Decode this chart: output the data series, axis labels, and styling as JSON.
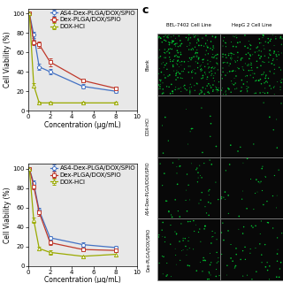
{
  "top_chart": {
    "xlabel": "Concentration (μg/mL)",
    "ylabel": "Cell Viability (%)",
    "xlim": [
      0,
      10
    ],
    "ylim": [
      0,
      105
    ],
    "xticks": [
      0,
      2,
      4,
      6,
      8,
      10
    ],
    "yticks": [
      0,
      20,
      40,
      60,
      80,
      100
    ],
    "series": [
      {
        "label": "AS4-Dex-PLGA/DOX/SPIO",
        "color": "#4472C4",
        "marker": "o",
        "x": [
          0.1,
          0.5,
          1.0,
          2.0,
          5.0,
          8.0
        ],
        "y": [
          100,
          78,
          45,
          40,
          25,
          20
        ],
        "yerr": [
          0,
          3,
          3,
          3,
          2,
          2
        ]
      },
      {
        "label": "Dex-PLGA/DOX/SPIO",
        "color": "#C0392B",
        "marker": "s",
        "x": [
          0.1,
          0.5,
          1.0,
          2.0,
          5.0,
          8.0
        ],
        "y": [
          100,
          70,
          68,
          50,
          31,
          23
        ],
        "yerr": [
          0,
          3,
          3,
          4,
          2,
          2
        ]
      },
      {
        "label": "DOX-HCl",
        "color": "#9aaa00",
        "marker": "^",
        "x": [
          0.1,
          0.5,
          1.0,
          2.0,
          5.0,
          8.0
        ],
        "y": [
          100,
          26,
          8,
          8,
          8,
          8
        ],
        "yerr": [
          0,
          2,
          1,
          1,
          1,
          1
        ]
      }
    ]
  },
  "bottom_chart": {
    "xlabel": "Concentration (μg/mL)",
    "ylabel": "Cell Viability (%)",
    "xlim": [
      0,
      10
    ],
    "ylim": [
      0,
      105
    ],
    "xticks": [
      0,
      2,
      4,
      6,
      8,
      10
    ],
    "yticks": [
      0,
      20,
      40,
      60,
      80,
      100
    ],
    "series": [
      {
        "label": "AS4-Dex-PLGA/DOX/SPIO",
        "color": "#4472C4",
        "marker": "o",
        "x": [
          0.1,
          0.5,
          1.0,
          2.0,
          5.0,
          8.0
        ],
        "y": [
          100,
          85,
          57,
          29,
          22,
          19
        ],
        "yerr": [
          0,
          3,
          3,
          2,
          2,
          2
        ]
      },
      {
        "label": "Dex-PLGA/DOX/SPIO",
        "color": "#C0392B",
        "marker": "s",
        "x": [
          0.1,
          0.5,
          1.0,
          2.0,
          5.0,
          8.0
        ],
        "y": [
          100,
          82,
          55,
          24,
          17,
          16
        ],
        "yerr": [
          0,
          3,
          3,
          2,
          2,
          2
        ]
      },
      {
        "label": "DOX-HCl",
        "color": "#9aaa00",
        "marker": "^",
        "x": [
          0.1,
          0.5,
          1.0,
          2.0,
          5.0,
          8.0
        ],
        "y": [
          100,
          47,
          18,
          14,
          10,
          12
        ],
        "yerr": [
          0,
          3,
          2,
          2,
          1,
          2
        ]
      }
    ]
  },
  "right_panel": {
    "label_c": "c",
    "col_labels": [
      "BEL-7402 Cell Line",
      "HepG 2 Cell Line"
    ],
    "row_labels": [
      "Blank",
      "DOX-HCl",
      "AS4-Dex-PLGA/DOX/SPIO",
      "Dex-PLGA/DOX/SPIO"
    ],
    "dot_densities": [
      300,
      15,
      50,
      80
    ],
    "bg_color": "#0a0a0a",
    "dot_color": [
      0,
      255,
      60
    ],
    "grid_color": "#888888"
  },
  "bg_color": "#e8e8e8",
  "legend_fontsize": 5.0,
  "axis_fontsize": 5.5,
  "tick_fontsize": 5.0,
  "linewidth": 0.9,
  "markersize": 3.0,
  "capsize": 1.5,
  "elinewidth": 0.5
}
